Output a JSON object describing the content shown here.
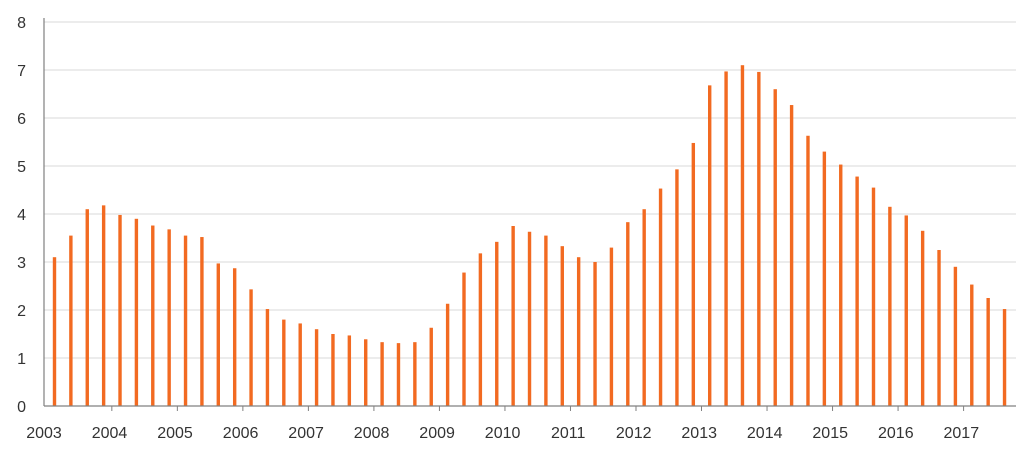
{
  "colors": {
    "bar": "#f26a21",
    "grid": "#d9d9d9",
    "axis": "#808080",
    "text": "#333333",
    "background": "#ffffff"
  },
  "chart_data": {
    "type": "bar",
    "title": "",
    "xlabel": "",
    "ylabel": "",
    "ylim": [
      0,
      8
    ],
    "yticks": [
      "0",
      "1",
      "2",
      "3",
      "4",
      "5",
      "6",
      "7",
      "8"
    ],
    "grid": true,
    "legend": "none",
    "year_labels": [
      "2003",
      "2004",
      "2005",
      "2006",
      "2007",
      "2008",
      "2009",
      "2010",
      "2011",
      "2012",
      "2013",
      "2014",
      "2015",
      "2016",
      "2017"
    ],
    "categories": [
      "2003 Q1",
      "2003 Q2",
      "2003 Q3",
      "2003 Q4",
      "2004 Q1",
      "2004 Q2",
      "2004 Q3",
      "2004 Q4",
      "2005 Q1",
      "2005 Q2",
      "2005 Q3",
      "2005 Q4",
      "2006 Q1",
      "2006 Q2",
      "2006 Q3",
      "2006 Q4",
      "2007 Q1",
      "2007 Q2",
      "2007 Q3",
      "2007 Q4",
      "2008 Q1",
      "2008 Q2",
      "2008 Q3",
      "2008 Q4",
      "2009 Q1",
      "2009 Q2",
      "2009 Q3",
      "2009 Q4",
      "2010 Q1",
      "2010 Q2",
      "2010 Q3",
      "2010 Q4",
      "2011 Q1",
      "2011 Q2",
      "2011 Q3",
      "2011 Q4",
      "2012 Q1",
      "2012 Q2",
      "2012 Q3",
      "2012 Q4",
      "2013 Q1",
      "2013 Q2",
      "2013 Q3",
      "2013 Q4",
      "2014 Q1",
      "2014 Q2",
      "2014 Q3",
      "2014 Q4",
      "2015 Q1",
      "2015 Q2",
      "2015 Q3",
      "2015 Q4",
      "2016 Q1",
      "2016 Q2",
      "2016 Q3",
      "2016 Q4",
      "2017 Q1",
      "2017 Q2",
      "2017 Q3"
    ],
    "values": [
      3.1,
      3.55,
      4.1,
      4.18,
      3.98,
      3.9,
      3.76,
      3.68,
      3.55,
      3.52,
      2.97,
      2.87,
      2.43,
      2.02,
      1.8,
      1.72,
      1.6,
      1.5,
      1.47,
      1.39,
      1.33,
      1.31,
      1.33,
      1.63,
      2.13,
      2.78,
      3.18,
      3.42,
      3.75,
      3.63,
      3.55,
      3.33,
      3.1,
      3.0,
      3.3,
      3.83,
      4.1,
      4.53,
      4.93,
      5.48,
      6.68,
      6.97,
      7.1,
      6.96,
      6.6,
      6.27,
      5.63,
      5.3,
      5.03,
      4.78,
      4.55,
      4.15,
      3.97,
      3.65,
      3.25,
      2.9,
      2.53,
      2.25,
      2.02
    ]
  }
}
